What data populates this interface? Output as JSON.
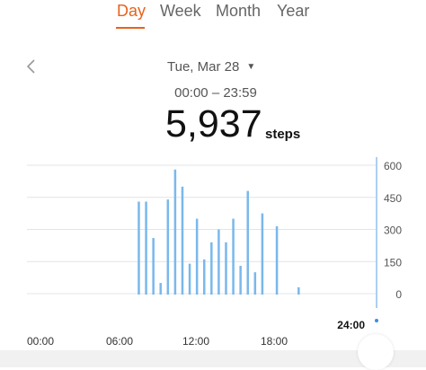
{
  "tabs": [
    {
      "label": "Day",
      "active": true
    },
    {
      "label": "Week",
      "active": false
    },
    {
      "label": "Month",
      "active": false
    },
    {
      "label": "Year",
      "active": false
    }
  ],
  "date": {
    "label": "Tue, Mar 28"
  },
  "time_range": "00:00 – 23:59",
  "summary": {
    "steps": "5,937",
    "unit": "steps"
  },
  "colors": {
    "accent": "#e8621a",
    "bar": "#7ab8ec",
    "cursor": "#3a8fe0",
    "grid": "#e4e4e4"
  },
  "icons": {
    "back": "chevron-left-icon",
    "dropdown": "caret-down-icon"
  },
  "cursor_label": "24:00",
  "chart_data": {
    "type": "bar",
    "x_ticks": [
      "00:00",
      "06:00",
      "12:00",
      "18:00"
    ],
    "y_ticks": [
      "600",
      "450",
      "300",
      "150",
      "0"
    ],
    "ylim": [
      0,
      600
    ],
    "x_range_hours": [
      0,
      24
    ],
    "values": [
      {
        "hour": 7.7,
        "steps": 430
      },
      {
        "hour": 8.2,
        "steps": 430
      },
      {
        "hour": 8.7,
        "steps": 260
      },
      {
        "hour": 9.2,
        "steps": 50
      },
      {
        "hour": 9.7,
        "steps": 440
      },
      {
        "hour": 10.2,
        "steps": 580
      },
      {
        "hour": 10.7,
        "steps": 500
      },
      {
        "hour": 11.2,
        "steps": 140
      },
      {
        "hour": 11.7,
        "steps": 350
      },
      {
        "hour": 12.2,
        "steps": 160
      },
      {
        "hour": 12.7,
        "steps": 240
      },
      {
        "hour": 13.2,
        "steps": 300
      },
      {
        "hour": 13.7,
        "steps": 240
      },
      {
        "hour": 14.2,
        "steps": 350
      },
      {
        "hour": 14.7,
        "steps": 130
      },
      {
        "hour": 15.2,
        "steps": 480
      },
      {
        "hour": 15.7,
        "steps": 100
      },
      {
        "hour": 16.2,
        "steps": 375
      },
      {
        "hour": 17.2,
        "steps": 315
      },
      {
        "hour": 18.7,
        "steps": 30
      }
    ]
  }
}
